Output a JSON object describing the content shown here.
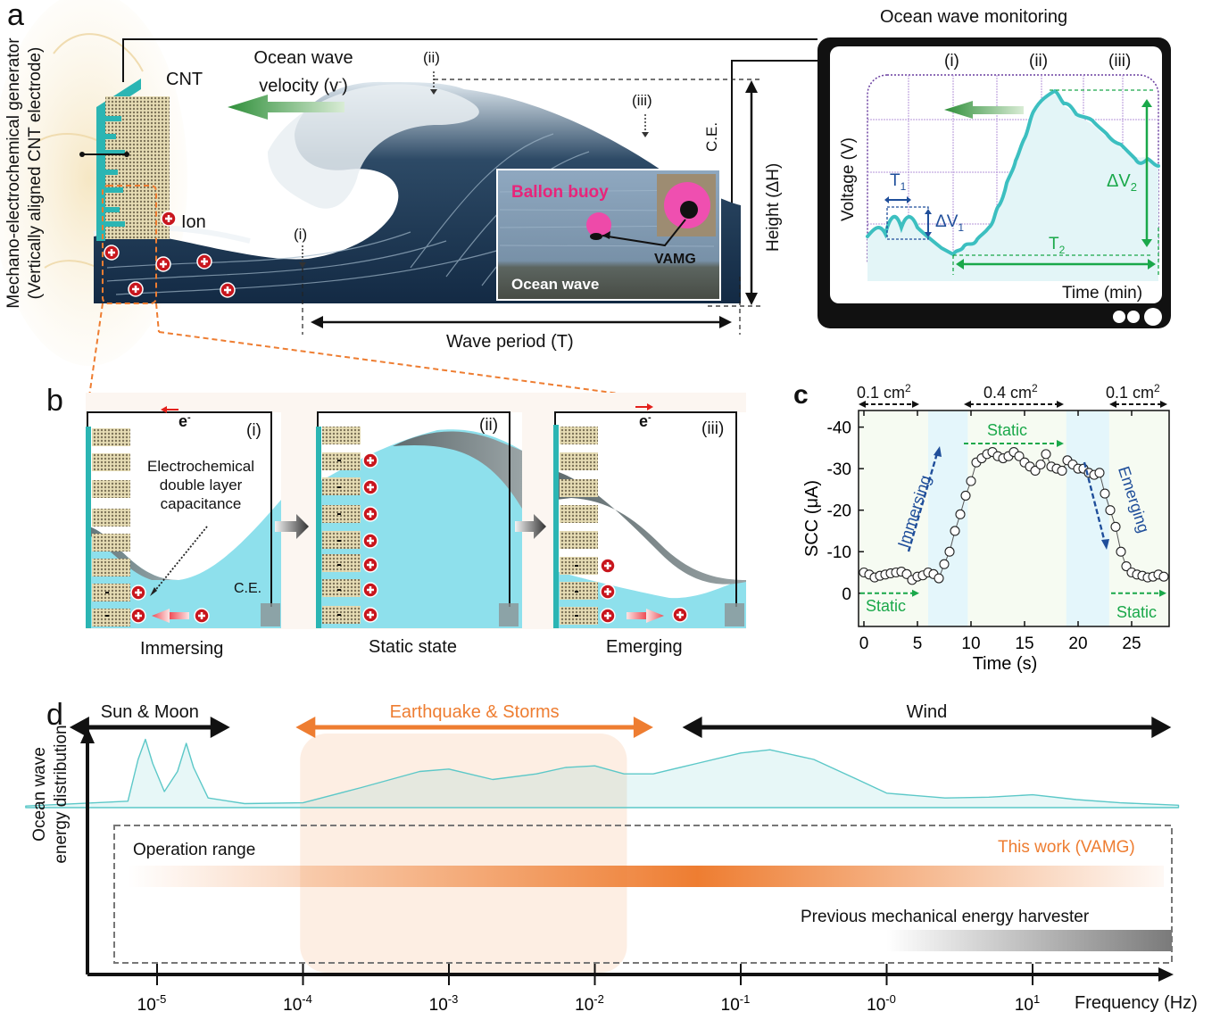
{
  "panel_a": {
    "label": "a",
    "device_title_line1": "Mechano-electrochemical generator",
    "device_title_line2": "(Vertically aligned CNT electrode)",
    "cnt_label": "CNT",
    "ion_label": "Ion",
    "velocity_line1": "Ocean wave",
    "velocity_line2": "velocity (v",
    "velocity_sup": "-",
    "velocity_close": ")",
    "points": [
      "(i)",
      "(ii)",
      "(iii)"
    ],
    "ce_label": "C.E.",
    "height_label": "Height (ΔH)",
    "period_label": "Wave period (T)",
    "photo": {
      "title": "Ballon buoy",
      "device": "VAMG",
      "caption": "Ocean wave",
      "title_color": "#e8247a"
    },
    "monitor": {
      "title": "Ocean wave monitoring",
      "ylabel": "Voltage (V)",
      "xlabel": "Time (min)",
      "stages": [
        "(i)",
        "(ii)",
        "(iii)"
      ],
      "t1": "T",
      "t1_sub": "1",
      "dv1": "ΔV",
      "dv1_sub": "1",
      "t2": "T",
      "t2_sub": "2",
      "dv2": "ΔV",
      "dv2_sub": "2",
      "trace_color": "#3cbfc0",
      "accent_green": "#1aa84a",
      "accent_blue": "#1f4e9a"
    }
  },
  "panel_b": {
    "label": "b",
    "electron": "e",
    "electron_sup": "-",
    "annotation_line1": "Electrochemical",
    "annotation_line2": "double layer",
    "annotation_line3": "capacitance",
    "ce_label": "C.E.",
    "minus": "-",
    "states": [
      {
        "roman": "(i)",
        "caption": "Immersing"
      },
      {
        "roman": "(ii)",
        "caption": "Static state"
      },
      {
        "roman": "(iii)",
        "caption": "Emerging"
      }
    ],
    "water_color": "#8ee0ec",
    "electrode_color": "#2bb5b3"
  },
  "panel_c": {
    "label": "c",
    "areas": [
      {
        "text": "0.1 cm",
        "sup": "2"
      },
      {
        "text": "0.4 cm",
        "sup": "2"
      },
      {
        "text": "0.1 cm",
        "sup": "2"
      }
    ],
    "annotations": {
      "static": "Static",
      "immersing": "Immersing",
      "emerging": "Emerging"
    }
  },
  "panel_d": {
    "label": "d",
    "ylabel_line1": "Ocean wave",
    "ylabel_line2": "energy distribution",
    "xlabel": "Frequency (Hz)",
    "ranges": [
      {
        "name": "Sun & Moon",
        "from_exp": -5.6,
        "to_exp": -4.5,
        "color": "#111111"
      },
      {
        "name": "Earthquake & Storms",
        "from_exp": -4.05,
        "to_exp": -1.6,
        "color": "#ee7d31"
      },
      {
        "name": "Wind",
        "from_exp": -1.4,
        "to_exp": 1.95,
        "color": "#111111"
      }
    ],
    "operation_range": "Operation range",
    "this_work": "This work (VAMG)",
    "previous": "Previous mechanical energy harvester",
    "ticks": [
      {
        "base": "10",
        "exp": "-5"
      },
      {
        "base": "10",
        "exp": "-4"
      },
      {
        "base": "10",
        "exp": "-3"
      },
      {
        "base": "10",
        "exp": "-2"
      },
      {
        "base": "10",
        "exp": "-1"
      },
      {
        "base": "10",
        "exp": "-0"
      },
      {
        "base": "10",
        "exp": "1"
      }
    ],
    "accent_orange": "#ee7d31",
    "curve_color": "#5cc8c8"
  },
  "chart_data": [
    {
      "type": "scatter",
      "title": "",
      "xlabel": "Time (s)",
      "ylabel": "SCC (μA)",
      "xlim": [
        -0.5,
        28.5
      ],
      "ylim": [
        8,
        -44
      ],
      "xticks": [
        0,
        5,
        10,
        15,
        20,
        25
      ],
      "yticks": [
        -40,
        -30,
        -20,
        -10,
        0
      ],
      "ytick_labels": [
        "-40",
        "-30",
        "-20",
        "-10",
        "0"
      ],
      "shaded_regions": [
        {
          "from": 6,
          "to": 9.7,
          "phase": "Immersing"
        },
        {
          "from": 18.9,
          "to": 22.9,
          "phase": "Emerging"
        }
      ],
      "series": [
        {
          "name": "SCC",
          "x": [
            0,
            0.5,
            1,
            1.5,
            2,
            2.5,
            3,
            3.5,
            4,
            4.5,
            5,
            5.5,
            6,
            6.5,
            7,
            7.5,
            8,
            8.5,
            9,
            9.5,
            10,
            10.5,
            11,
            11.5,
            12,
            12.5,
            13,
            13.5,
            14,
            14.5,
            15,
            15.5,
            16,
            16.5,
            17,
            17.5,
            18,
            18.5,
            19,
            19.5,
            20,
            20.5,
            21,
            21.5,
            22,
            22.5,
            23,
            23.5,
            24,
            24.5,
            25,
            25.5,
            26,
            26.5,
            27,
            27.5,
            28
          ],
          "y": [
            -5,
            -4.5,
            -3.8,
            -4.2,
            -4.5,
            -4.8,
            -5,
            -5.2,
            -4.6,
            -3.2,
            -4,
            -4.3,
            -5,
            -4.6,
            -3.6,
            -7,
            -10,
            -15,
            -19,
            -23.5,
            -27,
            -31.5,
            -32.5,
            -33.5,
            -34,
            -33,
            -32.5,
            -33,
            -34,
            -33,
            -31.5,
            -30.5,
            -29.5,
            -31,
            -33.5,
            -30.5,
            -30,
            -29.5,
            -32,
            -31,
            -30,
            -30,
            -29,
            -28.5,
            -29,
            -24,
            -20,
            -16,
            -10,
            -6.5,
            -5,
            -4.5,
            -4.2,
            -3.8,
            -4,
            -4.5,
            -4
          ]
        }
      ]
    },
    {
      "type": "area",
      "title": "",
      "xlabel": "Frequency (Hz)",
      "ylabel": "Ocean wave energy distribution",
      "xscale": "log",
      "xlim_exp": [
        -5.9,
        2.1
      ],
      "series": [
        {
          "name": "Ocean wave energy distribution",
          "x_exp": [
            -5.9,
            -5.2,
            -5.13,
            -5.08,
            -5.03,
            -4.95,
            -4.86,
            -4.8,
            -4.75,
            -4.65,
            -4.4,
            -4.0,
            -3.6,
            -3.2,
            -3.0,
            -2.7,
            -2.4,
            -2.2,
            -2.0,
            -1.8,
            -1.6,
            -1.3,
            -1.0,
            -0.8,
            -0.5,
            -0.2,
            0.0,
            0.4,
            0.7,
            1.0,
            1.3,
            1.6,
            2.0
          ],
          "y": [
            0.02,
            0.08,
            0.6,
            0.85,
            0.55,
            0.2,
            0.45,
            0.8,
            0.5,
            0.12,
            0.05,
            0.06,
            0.25,
            0.45,
            0.48,
            0.35,
            0.42,
            0.5,
            0.52,
            0.42,
            0.42,
            0.55,
            0.68,
            0.72,
            0.6,
            0.35,
            0.18,
            0.12,
            0.13,
            0.16,
            0.1,
            0.06,
            0.03
          ]
        }
      ],
      "bands": [
        {
          "name": "This work (VAMG)",
          "from_exp": -5.2,
          "to_exp": 1.9,
          "peak_exp": -1.3
        },
        {
          "name": "Previous mechanical energy harvester",
          "from_exp": 0.0,
          "to_exp": 1.95
        }
      ]
    }
  ]
}
